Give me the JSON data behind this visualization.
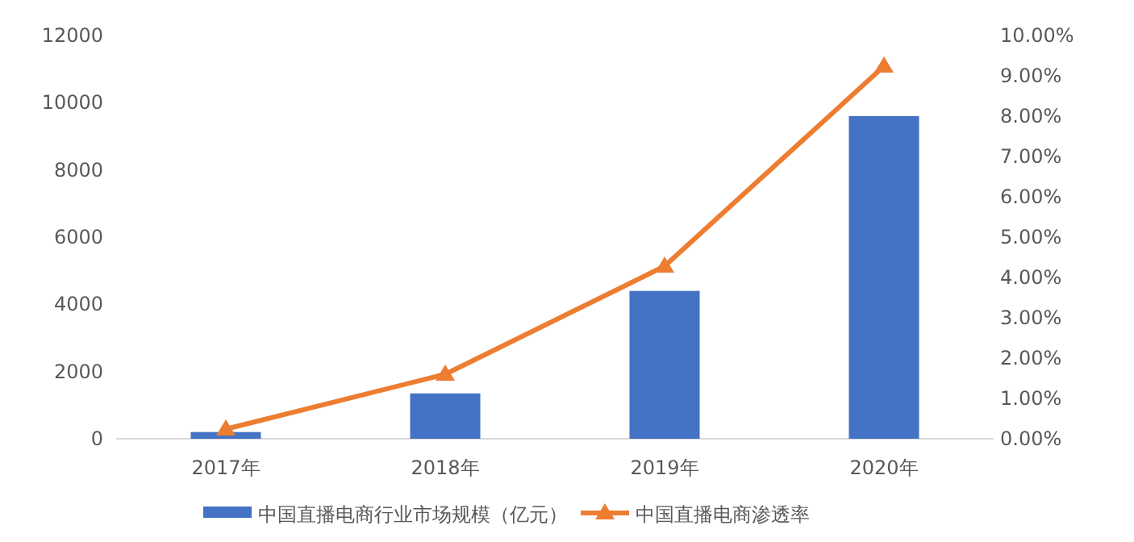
{
  "chart_data": {
    "type": "bar",
    "categories": [
      "2017年",
      "2018年",
      "2019年",
      "2020年"
    ],
    "series": [
      {
        "name": "中国直播电商行业市场规模（亿元）",
        "color": "#4472c4",
        "values": [
          200,
          1350,
          4400,
          9600
        ]
      },
      {
        "name": "中国直播电商渗透率",
        "type": "line",
        "axis": "y2",
        "color": "#ed7d31",
        "marker": "triangle",
        "values": [
          0.24,
          1.6,
          4.28,
          9.24
        ]
      }
    ],
    "ylim": [
      0,
      12000
    ],
    "yticks": [
      0,
      2000,
      4000,
      6000,
      8000,
      10000,
      12000
    ],
    "y2lim": [
      0,
      10
    ],
    "y2ticks": [
      {
        "value": 0,
        "label": "0.00%"
      },
      {
        "value": 1,
        "label": "1.00%"
      },
      {
        "value": 2,
        "label": "2.00%"
      },
      {
        "value": 3,
        "label": "3.00%"
      },
      {
        "value": 4,
        "label": "4.00%"
      },
      {
        "value": 5,
        "label": "5.00%"
      },
      {
        "value": 6,
        "label": "6.00%"
      },
      {
        "value": 7,
        "label": "7.00%"
      },
      {
        "value": 8,
        "label": "8.00%"
      },
      {
        "value": 9,
        "label": "9.00%"
      },
      {
        "value": 10,
        "label": "10.00%"
      }
    ],
    "grid": false,
    "legend": "bottom"
  }
}
